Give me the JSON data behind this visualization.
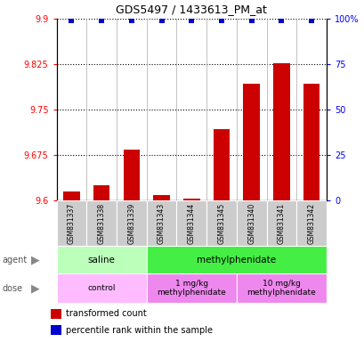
{
  "title": "GDS5497 / 1433613_PM_at",
  "samples": [
    "GSM831337",
    "GSM831338",
    "GSM831339",
    "GSM831343",
    "GSM831344",
    "GSM831345",
    "GSM831340",
    "GSM831341",
    "GSM831342"
  ],
  "bar_values": [
    9.614,
    9.624,
    9.683,
    9.609,
    9.602,
    9.718,
    9.793,
    9.826,
    9.793
  ],
  "percentile_values": [
    99,
    99,
    99,
    99,
    99,
    99,
    99,
    99,
    99
  ],
  "ylim_left": [
    9.6,
    9.9
  ],
  "ylim_right": [
    0,
    100
  ],
  "yticks_left": [
    9.6,
    9.675,
    9.75,
    9.825,
    9.9
  ],
  "yticks_right": [
    0,
    25,
    50,
    75,
    100
  ],
  "ytick_labels_left": [
    "9.6",
    "9.675",
    "9.75",
    "9.825",
    "9.9"
  ],
  "ytick_labels_right": [
    "0",
    "25",
    "50",
    "75",
    "100%"
  ],
  "bar_color": "#cc0000",
  "dot_color": "#0000cc",
  "bar_bottom": 9.6,
  "agent_groups": [
    {
      "label": "saline",
      "start": 0,
      "end": 3,
      "color": "#bbffbb"
    },
    {
      "label": "methylphenidate",
      "start": 3,
      "end": 9,
      "color": "#44ee44"
    }
  ],
  "dose_groups": [
    {
      "label": "control",
      "start": 0,
      "end": 3,
      "color": "#ffbbff"
    },
    {
      "label": "1 mg/kg\nmethylphenidate",
      "start": 3,
      "end": 6,
      "color": "#ee88ee"
    },
    {
      "label": "10 mg/kg\nmethylphenidate",
      "start": 6,
      "end": 9,
      "color": "#ee88ee"
    }
  ],
  "legend_items": [
    {
      "label": "transformed count",
      "color": "#cc0000"
    },
    {
      "label": "percentile rank within the sample",
      "color": "#0000cc"
    }
  ],
  "agent_label": "agent",
  "dose_label": "dose",
  "sample_bg": "#cccccc",
  "grid_linestyle": "dotted",
  "grid_linewidth": 0.8
}
